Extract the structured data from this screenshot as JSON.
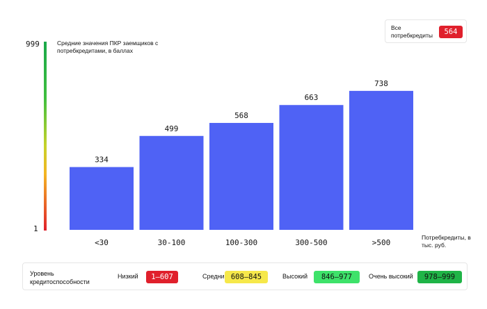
{
  "chart_data": {
    "type": "bar",
    "categories": [
      "<30",
      "30-100",
      "100-300",
      "300-500",
      ">500"
    ],
    "values": [
      334,
      499,
      568,
      663,
      738
    ],
    "ylabel": "Средние значения ПКР заемщиков с потребкредитами, в баллах",
    "xlabel": "Потребкредиты, в тыс. руб.",
    "ylim": [
      1,
      999
    ],
    "y_ticks": [
      "999",
      "1"
    ],
    "bar_color": "#4f62f5",
    "grid": false
  },
  "summary": {
    "label": "Все потребкредиты",
    "value": "564",
    "color": "#e0202c"
  },
  "legend": {
    "title": "Уровень кредитоспособности",
    "items": [
      {
        "label": "Низкий",
        "range": "1–607",
        "bg": "#e0202c",
        "fg": "#ffffff"
      },
      {
        "label": "Средний",
        "range": "608–845",
        "bg": "#f6e84a",
        "fg": "#111111"
      },
      {
        "label": "Высокий",
        "range": "846–977",
        "bg": "#3ee26a",
        "fg": "#111111"
      },
      {
        "label": "Очень высокий",
        "range": "978–999",
        "bg": "#1fb447",
        "fg": "#111111"
      }
    ]
  }
}
